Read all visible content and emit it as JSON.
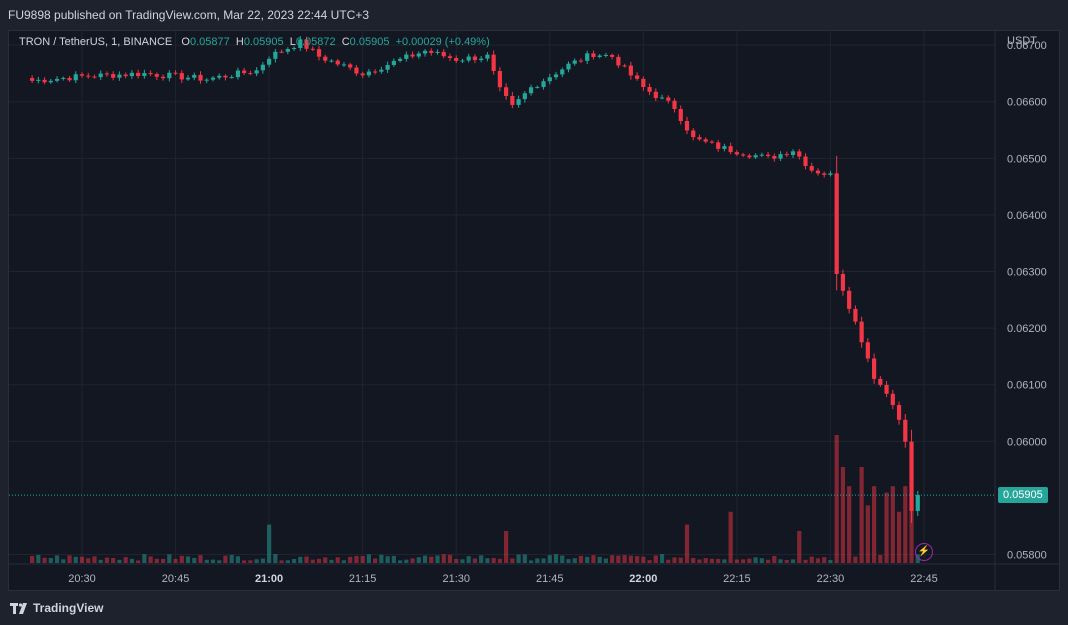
{
  "header": {
    "publish_text": "FU9898 published on TradingView.com, Mar 22, 2023 22:44 UTC+3"
  },
  "legend": {
    "symbol": "TRON / TetherUS, 1, BINANCE",
    "open_label": "O",
    "open_value": "0.05877",
    "high_label": "H",
    "high_value": "0.05905",
    "low_label": "L",
    "low_value": "0.05872",
    "close_label": "C",
    "close_value": "0.05905",
    "change": "+0.00029 (+0.49%)"
  },
  "footer": {
    "brand": "TradingView"
  },
  "colors": {
    "up": "#26a69a",
    "down": "#f23645",
    "background": "#131722",
    "grid": "#1f2430",
    "text": "#b2b5be"
  },
  "icons": {
    "brand": "tradingview-logo-icon",
    "flash": "lightning-icon"
  },
  "chart_data": {
    "type": "candlestick",
    "currency_label": "USDT",
    "y_ticks": [
      "0.06700",
      "0.06600",
      "0.06500",
      "0.06400",
      "0.06300",
      "0.06200",
      "0.06100",
      "0.06000",
      "0.05800"
    ],
    "x_ticks": [
      "20:30",
      "20:45",
      "21:00",
      "21:15",
      "21:30",
      "21:45",
      "22:00",
      "22:15",
      "22:30",
      "22:45"
    ],
    "x_ticks_bold": [
      "21:00",
      "22:00"
    ],
    "ylim": [
      0.05785,
      0.06725
    ],
    "current_price": "0.05905",
    "grid": true,
    "anchor_closes": [
      [
        "20:22",
        0.06637
      ],
      [
        "20:30",
        0.06645
      ],
      [
        "20:40",
        0.0665
      ],
      [
        "20:50",
        0.0664
      ],
      [
        "20:58",
        0.06655
      ],
      [
        "21:00",
        0.0668
      ],
      [
        "21:05",
        0.06705
      ],
      [
        "21:08",
        0.0668
      ],
      [
        "21:15",
        0.0665
      ],
      [
        "21:20",
        0.0667
      ],
      [
        "21:25",
        0.0669
      ],
      [
        "21:30",
        0.06675
      ],
      [
        "21:35",
        0.0668
      ],
      [
        "21:37",
        0.0662
      ],
      [
        "21:39",
        0.0659
      ],
      [
        "21:42",
        0.06625
      ],
      [
        "21:48",
        0.06665
      ],
      [
        "21:52",
        0.06685
      ],
      [
        "21:55",
        0.0668
      ],
      [
        "22:00",
        0.06625
      ],
      [
        "22:05",
        0.0659
      ],
      [
        "22:08",
        0.06535
      ],
      [
        "22:12",
        0.0652
      ],
      [
        "22:20",
        0.065
      ],
      [
        "22:24",
        0.06515
      ],
      [
        "22:27",
        0.0648
      ],
      [
        "22:30",
        0.0647
      ],
      [
        "22:31",
        0.063
      ],
      [
        "22:33",
        0.0624
      ],
      [
        "22:35",
        0.0618
      ],
      [
        "22:37",
        0.06115
      ],
      [
        "22:40",
        0.0607
      ],
      [
        "22:42",
        0.06
      ],
      [
        "22:43",
        0.05877
      ],
      [
        "22:44",
        0.05905
      ]
    ],
    "volume_spikes": [
      [
        "21:00",
        0.3
      ],
      [
        "21:38",
        0.25
      ],
      [
        "22:07",
        0.3
      ],
      [
        "22:14",
        0.4
      ],
      [
        "22:25",
        0.25
      ],
      [
        "22:31",
        1.0
      ],
      [
        "22:32",
        0.75
      ],
      [
        "22:33",
        0.6
      ],
      [
        "22:35",
        0.75
      ],
      [
        "22:36",
        0.45
      ],
      [
        "22:37",
        0.6
      ],
      [
        "22:39",
        0.55
      ],
      [
        "22:40",
        0.6
      ],
      [
        "22:41",
        0.4
      ],
      [
        "22:42",
        0.6
      ],
      [
        "22:43",
        0.5
      ]
    ]
  }
}
